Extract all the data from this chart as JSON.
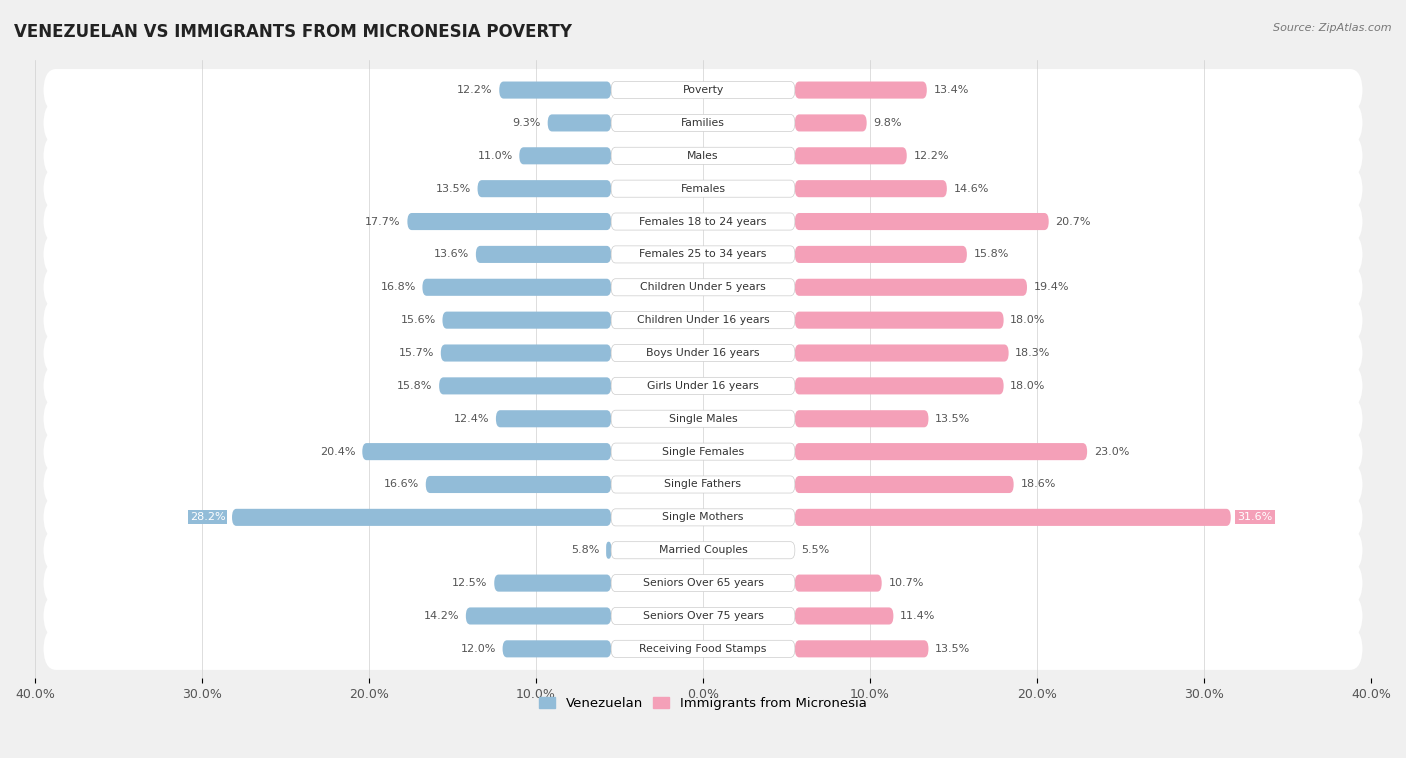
{
  "title": "VENEZUELAN VS IMMIGRANTS FROM MICRONESIA POVERTY",
  "source": "Source: ZipAtlas.com",
  "categories": [
    "Poverty",
    "Families",
    "Males",
    "Females",
    "Females 18 to 24 years",
    "Females 25 to 34 years",
    "Children Under 5 years",
    "Children Under 16 years",
    "Boys Under 16 years",
    "Girls Under 16 years",
    "Single Males",
    "Single Females",
    "Single Fathers",
    "Single Mothers",
    "Married Couples",
    "Seniors Over 65 years",
    "Seniors Over 75 years",
    "Receiving Food Stamps"
  ],
  "venezuelan": [
    12.2,
    9.3,
    11.0,
    13.5,
    17.7,
    13.6,
    16.8,
    15.6,
    15.7,
    15.8,
    12.4,
    20.4,
    16.6,
    28.2,
    5.8,
    12.5,
    14.2,
    12.0
  ],
  "micronesia": [
    13.4,
    9.8,
    12.2,
    14.6,
    20.7,
    15.8,
    19.4,
    18.0,
    18.3,
    18.0,
    13.5,
    23.0,
    18.6,
    31.6,
    5.5,
    10.7,
    11.4,
    13.5
  ],
  "venezuelan_color": "#92bcd8",
  "micronesia_color": "#f4a0b8",
  "background_color": "#f0f0f0",
  "bar_bg_color": "#ffffff",
  "row_sep_color": "#d8d8d8",
  "xlim": 40.0,
  "legend_venezuelan": "Venezuelan",
  "legend_micronesia": "Immigrants from Micronesia",
  "tick_vals": [
    -40,
    -30,
    -20,
    -10,
    0,
    10,
    20,
    30,
    40
  ]
}
